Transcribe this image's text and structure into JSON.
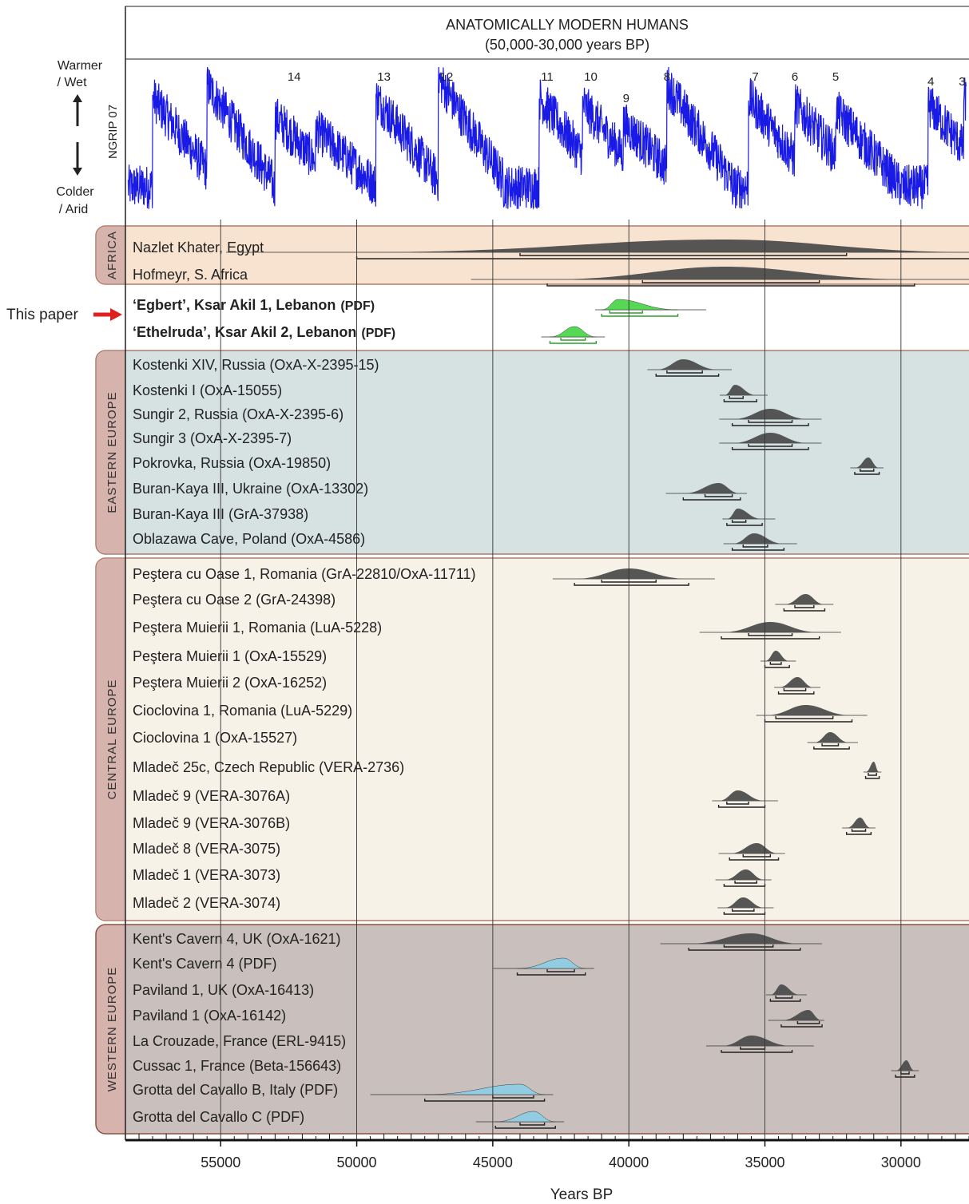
{
  "chart_data": {
    "type": "timeline-probability",
    "title": "ANATOMICALLY MODERN HUMANS",
    "subtitle": "(50,000-30,000 years BP)",
    "xlabel": "Years BP",
    "xlim": [
      58500,
      27500
    ],
    "x_ticks": [
      55000,
      50000,
      45000,
      40000,
      35000,
      30000
    ],
    "x_tick_labels": [
      "55000",
      "50000",
      "45000",
      "40000",
      "35000",
      "30000"
    ],
    "climate": {
      "series_name": "NGRIP 07",
      "warm_label": "Warmer",
      "warm_label2": "/ Wet",
      "cold_label": "Colder",
      "cold_label2": "/ Arid",
      "line_color": "#1a1ae6",
      "interstadials": [
        {
          "label": "14",
          "x": 52300
        },
        {
          "label": "13",
          "x": 49000
        },
        {
          "label": "12",
          "x": 46700
        },
        {
          "label": "11",
          "x": 43000
        },
        {
          "label": "10",
          "x": 41400
        },
        {
          "label": "9",
          "x": 40100
        },
        {
          "label": "8",
          "x": 38600
        },
        {
          "label": "7",
          "x": 35350
        },
        {
          "label": "6",
          "x": 33900
        },
        {
          "label": "5",
          "x": 32400
        },
        {
          "label": "4",
          "x": 28900
        },
        {
          "label": "3",
          "x": 27750
        }
      ]
    },
    "pointer": {
      "label": "This paper",
      "color": "#e02020"
    },
    "groups": [
      {
        "name": "AFRICA",
        "color": "#f7e3cf",
        "border": "#b07a6a",
        "samples": [
          {
            "label": "Nazlet Khater, Egypt",
            "mean": 36500,
            "range68": [
              44000,
              32000
            ],
            "range95": [
              50000,
              27000
            ]
          },
          {
            "label": "Hofmeyr, S. Africa",
            "mean": 36500,
            "range68": [
              39500,
              33000
            ],
            "range95": [
              43000,
              29500
            ]
          }
        ]
      },
      {
        "name": "",
        "color": "#ffffff",
        "border": "none",
        "samples": [
          {
            "label": "‘Egbert’, Ksar Akil 1, Lebanon",
            "code": "(PDF)",
            "bold": true,
            "fill": "#4cd84c",
            "mean": 40400,
            "range68": [
              40700,
              39500
            ],
            "range95": [
              41000,
              38200
            ]
          },
          {
            "label": "‘Ethelruda’, Ksar Akil 2, Lebanon",
            "code": "(PDF)",
            "bold": true,
            "fill": "#4cd84c",
            "mean": 42000,
            "range68": [
              42500,
              41600
            ],
            "range95": [
              42900,
              41200
            ]
          }
        ]
      },
      {
        "name": "EASTERN EUROPE",
        "color": "#d6e2e2",
        "border": "#b07a6a",
        "samples": [
          {
            "label": "Kostenki XIV, Russia (OxA-X-2395-15)",
            "mean": 38000,
            "range68": [
              38600,
              37300
            ],
            "range95": [
              39000,
              36700
            ]
          },
          {
            "label": "Kostenki I (OxA-15055)",
            "mean": 36100,
            "range68": [
              36300,
              35800
            ],
            "range95": [
              36500,
              35300
            ]
          },
          {
            "label": "Sungir 2, Russia (OxA-X-2395-6)",
            "mean": 34800,
            "range68": [
              35600,
              34000
            ],
            "range95": [
              36200,
              33400
            ]
          },
          {
            "label": "Sungir 3 (OxA-X-2395-7)",
            "mean": 34800,
            "range68": [
              35600,
              34000
            ],
            "range95": [
              36200,
              33400
            ]
          },
          {
            "label": "Pokrovka, Russia (OxA-19850)",
            "mean": 31200,
            "range68": [
              31500,
              31000
            ],
            "range95": [
              31700,
              30800
            ]
          },
          {
            "label": "Buran-Kaya III, Ukraine (OxA-13302)",
            "mean": 36700,
            "range68": [
              37200,
              36200
            ],
            "range95": [
              38000,
              35900
            ]
          },
          {
            "label": "Buran-Kaya III  (GrA-37938)",
            "mean": 36000,
            "range68": [
              36200,
              35700
            ],
            "range95": [
              36400,
              35100
            ]
          },
          {
            "label": "Oblazawa Cave, Poland (OxA-4586)",
            "mean": 35400,
            "range68": [
              35800,
              34900
            ],
            "range95": [
              36200,
              34300
            ]
          }
        ]
      },
      {
        "name": "CENTRAL  EUROPE",
        "color": "#f7f2e8",
        "border": "#b07a6a",
        "samples": [
          {
            "label": "Peştera cu Oase 1, Romania (GrA-22810/OxA-11711)",
            "mean": 40000,
            "range68": [
              41000,
              39000
            ],
            "range95": [
              42000,
              37800
            ]
          },
          {
            "label": "Peştera cu Oase 2 (GrA-24398)",
            "mean": 33500,
            "range68": [
              33900,
              33200
            ],
            "range95": [
              34300,
              32800
            ]
          },
          {
            "label": "Peştera Muierii 1, Romania (LuA-5228)",
            "mean": 34800,
            "range68": [
              35600,
              34000
            ],
            "range95": [
              36600,
              33000
            ]
          },
          {
            "label": "Peştera Muierii 1 (OxA-15529)",
            "mean": 34600,
            "range68": [
              34800,
              34400
            ],
            "range95": [
              35000,
              34100
            ]
          },
          {
            "label": "Peştera Muierii 2 (OxA-16252)",
            "mean": 33800,
            "range68": [
              34300,
              33500
            ],
            "range95": [
              34500,
              33200
            ]
          },
          {
            "label": "Cioclovina 1, Romania (LuA-5229)",
            "mean": 33500,
            "range68": [
              34600,
              32500
            ],
            "range95": [
              35000,
              31800
            ]
          },
          {
            "label": "Cioclovina 1 (OxA-15527)",
            "mean": 32600,
            "range68": [
              32900,
              32300
            ],
            "range95": [
              33200,
              31900
            ]
          },
          {
            "label": "Mladeč 25c, Czech Republic (VERA-2736)",
            "mean": 31000,
            "range68": [
              31200,
              30900
            ],
            "range95": [
              31300,
              30800
            ]
          },
          {
            "label": "Mladeč 9 (VERA-3076A)",
            "mean": 36000,
            "range68": [
              36400,
              35600
            ],
            "range95": [
              36700,
              35000
            ]
          },
          {
            "label": "Mladeč 9 (VERA-3076B)",
            "mean": 31500,
            "range68": [
              31800,
              31300
            ],
            "range95": [
              32000,
              31100
            ]
          },
          {
            "label": "Mladeč 8 (VERA-3075)",
            "mean": 35300,
            "range68": [
              35800,
              34800
            ],
            "range95": [
              36300,
              34500
            ]
          },
          {
            "label": "Mladeč 1 (VERA-3073)",
            "mean": 35700,
            "range68": [
              36100,
              35300
            ],
            "range95": [
              36500,
              35000
            ]
          },
          {
            "label": "Mladeč 2 (VERA-3074)",
            "mean": 35800,
            "range68": [
              36200,
              35400
            ],
            "range95": [
              36500,
              35000
            ]
          }
        ]
      },
      {
        "name": "WESTERN  EUROPE",
        "color": "#c9c0bd",
        "border": "#8f5040",
        "samples": [
          {
            "label": "Kent's Cavern 4, UK (OxA-1621)",
            "mean": 35500,
            "range68": [
              36500,
              34700
            ],
            "range95": [
              37800,
              33700
            ]
          },
          {
            "label": "Kent's Cavern 4 (PDF)",
            "fill": "#8fcde4",
            "mean": 42400,
            "range68": [
              43000,
              42000
            ],
            "range95": [
              44100,
              41600
            ]
          },
          {
            "label": "Paviland 1, UK (OxA-16413)",
            "mean": 34400,
            "range68": [
              34600,
              34000
            ],
            "range95": [
              34800,
              33700
            ]
          },
          {
            "label": "Paviland 1 (OxA-16142)",
            "mean": 33400,
            "range68": [
              33800,
              33000
            ],
            "range95": [
              34400,
              32900
            ]
          },
          {
            "label": "La Crouzade, France (ERL-9415)",
            "mean": 35500,
            "range68": [
              35900,
              35000
            ],
            "range95": [
              36600,
              34000
            ]
          },
          {
            "label": "Cussac 1, France (Beta-156643)",
            "mean": 29800,
            "range68": [
              30000,
              29700
            ],
            "range95": [
              30200,
              29500
            ]
          },
          {
            "label": "Grotta del Cavallo B, Italy (PDF)",
            "fill": "#8fcde4",
            "mean": 44000,
            "range68": [
              45000,
              43500
            ],
            "range95": [
              47500,
              43100
            ]
          },
          {
            "label": "Grotta del Cavallo C (PDF)",
            "fill": "#8fcde4",
            "mean": 43500,
            "range68": [
              44000,
              43100
            ],
            "range95": [
              44900,
              42700
            ]
          }
        ]
      }
    ]
  }
}
